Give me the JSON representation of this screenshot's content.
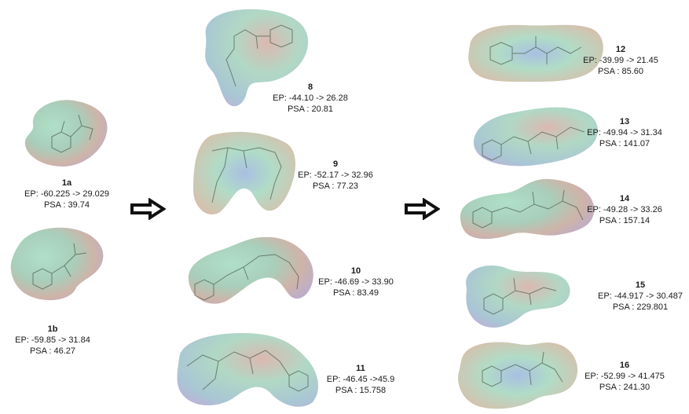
{
  "compounds": [
    {
      "id": "1a",
      "ep": "EP: -60.225 -> 29.029",
      "psa": "PSA : 39.74"
    },
    {
      "id": "1b",
      "ep": "EP: -59.85 -> 31.84",
      "psa": "PSA : 46.27"
    },
    {
      "id": "8",
      "ep": "EP: -44.10 -> 26.28",
      "psa": "PSA : 20.81"
    },
    {
      "id": "9",
      "ep": "EP: -52.17 -> 32.96",
      "psa": "PSA : 77.23"
    },
    {
      "id": "10",
      "ep": "EP: -46.69 -> 33.90",
      "psa": "PSA : 83.49"
    },
    {
      "id": "11",
      "ep": "EP: -46.45 ->45.9",
      "psa": "PSA : 15.758"
    },
    {
      "id": "12",
      "ep": "EP: -39.99 -> 21.45",
      "psa": "PSA : 85.60"
    },
    {
      "id": "13",
      "ep": "EP: -49.94 -> 31.34",
      "psa": "PSA : 141.07"
    },
    {
      "id": "14",
      "ep": "EP: -49.28 -> 33.26",
      "psa": "PSA : 157.14"
    },
    {
      "id": "15",
      "ep": "EP: -44.917 -> 30.487",
      "psa": "PSA : 229.801"
    },
    {
      "id": "16",
      "ep": "EP: -52.99 -> 41.475",
      "psa": "PSA : 241.30"
    }
  ],
  "colors": {
    "surface_green": "#9ed4b8",
    "surface_pink": "#d9a9a6",
    "surface_violet": "#a9a4d8",
    "surface_tan": "#c9c09a",
    "arrow": "#111111"
  },
  "icons": [
    "right-arrow-icon",
    "right-arrow-icon"
  ]
}
